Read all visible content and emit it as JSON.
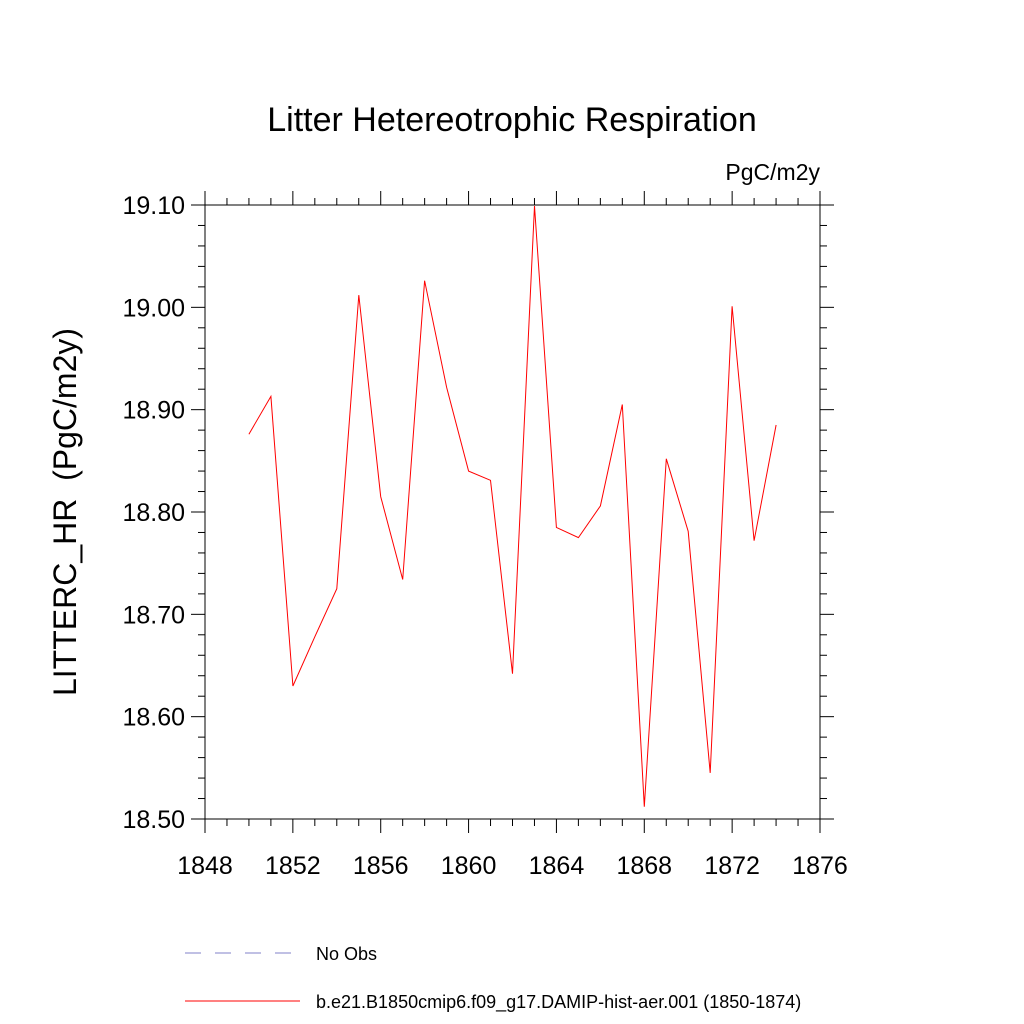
{
  "chart_data": {
    "type": "line",
    "title": "Litter Hetereotrophic Respiration",
    "units_label": "PgC/m2y",
    "ylabel": "LITTERC_HR  (PgC/m2y)",
    "xlabel": "",
    "xlim": [
      1848,
      1876
    ],
    "ylim": [
      18.5,
      19.1
    ],
    "x_ticks": [
      1848,
      1852,
      1856,
      1860,
      1864,
      1868,
      1872,
      1876
    ],
    "x_tick_labels": [
      "1848",
      "1852",
      "1856",
      "1860",
      "1864",
      "1868",
      "1872",
      "1876"
    ],
    "y_ticks": [
      18.5,
      18.6,
      18.7,
      18.8,
      18.9,
      19.0,
      19.1
    ],
    "y_tick_labels": [
      "18.50",
      "18.60",
      "18.70",
      "18.80",
      "18.90",
      "19.00",
      "19.10"
    ],
    "grid": false,
    "legend_position": "bottom",
    "series": [
      {
        "name": "No Obs",
        "color": "#8080c8",
        "dash": true,
        "x": [],
        "y": []
      },
      {
        "name": "b.e21.B1850cmip6.f09_g17.DAMIP-hist-aer.001 (1850-1874)",
        "color": "#ff0000",
        "dash": false,
        "x": [
          1850,
          1851,
          1852,
          1853,
          1854,
          1855,
          1856,
          1857,
          1858,
          1859,
          1860,
          1861,
          1862,
          1863,
          1864,
          1865,
          1866,
          1867,
          1868,
          1869,
          1870,
          1871,
          1872,
          1873,
          1874
        ],
        "y": [
          18.876,
          18.913,
          18.63,
          18.678,
          18.725,
          19.012,
          18.815,
          18.734,
          19.026,
          18.922,
          18.84,
          18.831,
          18.642,
          19.099,
          18.785,
          18.775,
          18.806,
          18.905,
          18.512,
          18.852,
          18.781,
          18.545,
          19.001,
          18.772,
          18.885
        ]
      }
    ]
  }
}
